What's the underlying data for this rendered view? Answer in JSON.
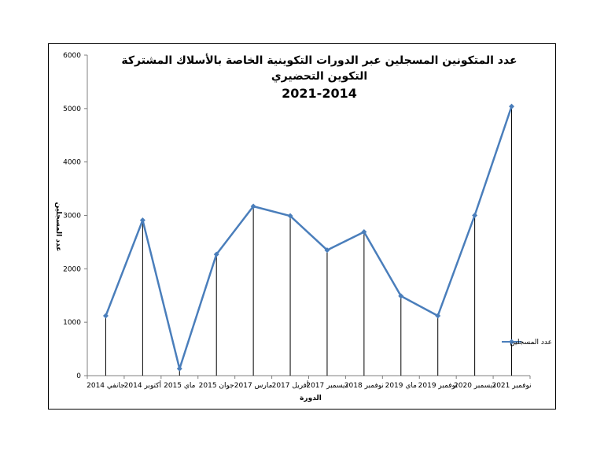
{
  "chart_data": {
    "type": "line",
    "title_lines": [
      "عدد المتكونين المسجلين عبر الدورات التكوينية الخاصة بالأسلاك المشتركة",
      "التكوين التحضيري",
      "2021-2014"
    ],
    "xlabel": "الدورة",
    "ylabel": "عدد المسجلين",
    "ylim": [
      0,
      6000
    ],
    "yticks": [
      0,
      1000,
      2000,
      3000,
      4000,
      5000,
      6000
    ],
    "grid": false,
    "legend_position": "right",
    "categories": [
      "جانفي 2014",
      "أكتوبر 2014",
      "ماي 2015",
      "جوان 2015",
      "مارس 2017",
      "أفريل 2017",
      "ديسمبر 2017",
      "نوفمبر 2018",
      "ماي 2019",
      "نوفمبر 2019",
      "ديسمبر 2020",
      "نوفمبر 2021"
    ],
    "series": [
      {
        "name": "عدد المسجلين",
        "color": "#4a7ebb",
        "values": [
          1120,
          2910,
          130,
          2270,
          3170,
          2990,
          2350,
          2690,
          1490,
          1120,
          3000,
          5040
        ]
      }
    ]
  }
}
